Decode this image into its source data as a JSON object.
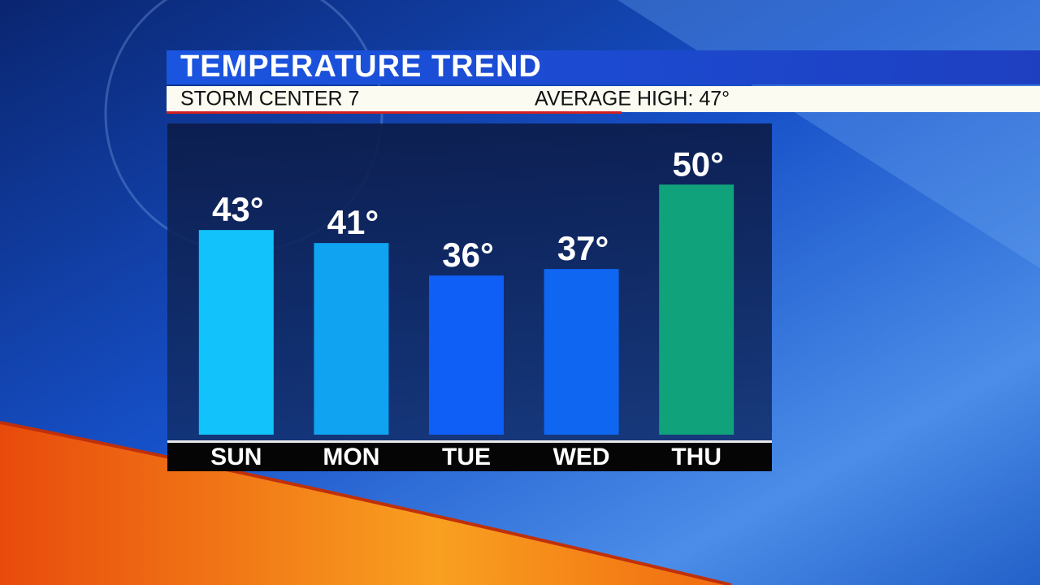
{
  "chart_data": {
    "type": "bar",
    "title": "TEMPERATURE TREND",
    "subtitle": "STORM CENTER 7",
    "annotation": "AVERAGE HIGH: 47°",
    "categories": [
      "SUN",
      "MON",
      "TUE",
      "WED",
      "THU"
    ],
    "values": [
      43,
      41,
      36,
      37,
      50
    ],
    "value_labels": [
      "43°",
      "41°",
      "36°",
      "37°",
      "50°"
    ],
    "colors": [
      "#12c3fb",
      "#0fa3f1",
      "#0f5ef5",
      "#0f66f1",
      "#10a27b"
    ],
    "ylim": [
      11.5,
      59.4
    ]
  }
}
